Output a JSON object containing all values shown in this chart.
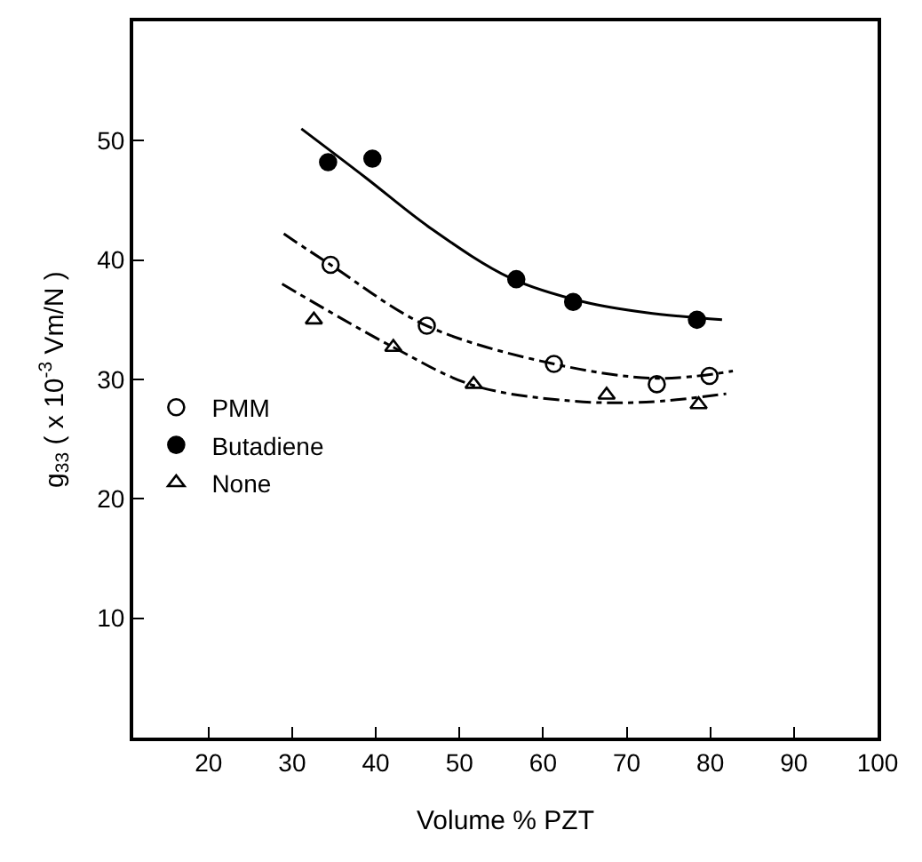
{
  "chart_data": {
    "type": "scatter",
    "xlabel": "Volume % PZT",
    "ylabel": "g$_{33}$ ( x 10$^{-3}$ Vm/N )",
    "xlim": [
      11,
      100
    ],
    "xticks": [
      20,
      30,
      40,
      50,
      60,
      70,
      80,
      90,
      100
    ],
    "ylim": [
      0,
      60
    ],
    "yticks": [
      10,
      20,
      30,
      40,
      50
    ],
    "legend": "left",
    "series": [
      {
        "name": "PMM",
        "marker": "circle",
        "color": "#ffffff",
        "x": [
          34.6,
          46.1,
          61.3,
          73.6,
          79.9
        ],
        "values": [
          39.6,
          34.5,
          31.3,
          29.6,
          30.3
        ]
      },
      {
        "name": "Butadiene",
        "marker": "circle",
        "color": "#000000",
        "x": [
          34.3,
          39.6,
          56.8,
          63.6,
          78.4
        ],
        "values": [
          48.2,
          48.5,
          38.4,
          36.5,
          35.0
        ]
      },
      {
        "name": "None",
        "marker": "triangle",
        "color": "#ffffff",
        "x": [
          32.6,
          42.1,
          51.7,
          67.6,
          78.6
        ],
        "values": [
          35.0,
          32.7,
          29.6,
          28.7,
          27.9
        ]
      },
      {
        "type": "line",
        "line_style": "dashed",
        "color": "#000000",
        "x": [
          29.0,
          34.6,
          46.1,
          61.3,
          73.6,
          82.7
        ],
        "values": [
          42.2,
          39.6,
          34.5,
          31.3,
          30.1,
          30.7
        ]
      },
      {
        "type": "line",
        "line_style": "solid",
        "color": "#000000",
        "x": [
          31.1,
          38.8,
          46.5,
          56.1,
          64.9,
          72.3,
          81.4
        ],
        "values": [
          51.0,
          46.9,
          42.7,
          38.5,
          36.5,
          35.6,
          35.0
        ]
      },
      {
        "type": "line",
        "line_style": "dashed",
        "color": "#000000",
        "x": [
          28.8,
          42.1,
          51.7,
          63.4,
          72.3,
          81.9
        ],
        "values": [
          38.0,
          32.7,
          29.5,
          28.2,
          28.1,
          28.8
        ]
      }
    ]
  }
}
